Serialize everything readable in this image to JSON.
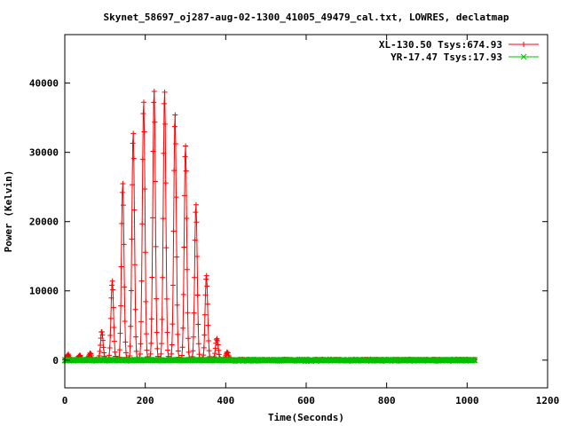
{
  "chart_data": {
    "type": "line",
    "title": "Skynet_58697_oj287-aug-02-1300_41005_49479_cal.txt, LOWRES, declatmap",
    "xlabel": "Time(Seconds)",
    "ylabel": "Power (Kelvin)",
    "xlim": [
      0,
      1200
    ],
    "ylim": [
      -4000,
      47000
    ],
    "xticks": [
      0,
      200,
      400,
      600,
      800,
      1000,
      1200
    ],
    "yticks": [
      0,
      10000,
      20000,
      30000,
      40000
    ],
    "legend_position": "top-right",
    "series": [
      {
        "name": "XL-130.50 Tsys:674.93",
        "color": "#ff0000",
        "marker": "plus",
        "scan_period_seconds": 26,
        "x_range": [
          0,
          1020
        ],
        "peaks": [
          {
            "x": 8,
            "y": 800
          },
          {
            "x": 37,
            "y": 700
          },
          {
            "x": 63,
            "y": 1000
          },
          {
            "x": 92,
            "y": 4200
          },
          {
            "x": 118,
            "y": 11500
          },
          {
            "x": 144,
            "y": 25500
          },
          {
            "x": 170,
            "y": 33000
          },
          {
            "x": 196,
            "y": 37500
          },
          {
            "x": 222,
            "y": 39000
          },
          {
            "x": 248,
            "y": 38800
          },
          {
            "x": 274,
            "y": 35500
          },
          {
            "x": 300,
            "y": 31000
          },
          {
            "x": 326,
            "y": 22500
          },
          {
            "x": 352,
            "y": 12200
          },
          {
            "x": 378,
            "y": 3200
          },
          {
            "x": 404,
            "y": 1200
          }
        ]
      },
      {
        "name": "YR-17.47 Tsys:17.93",
        "color": "#00c000",
        "marker": "x",
        "x_range": [
          0,
          1020
        ],
        "value": 0
      }
    ]
  }
}
